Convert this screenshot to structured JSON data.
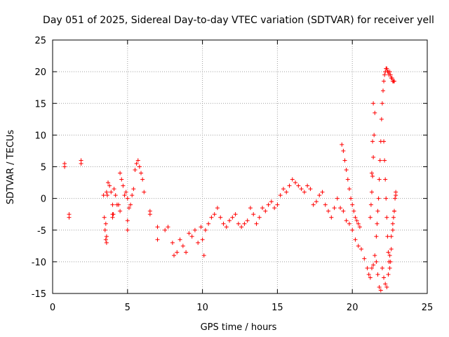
{
  "chart_data": {
    "type": "scatter",
    "title": "Day 051 of 2025, Sidereal Day-to-day VTEC variation (SDTVAR) for receiver yell",
    "xlabel": "GPS time / hours",
    "ylabel": "SDTVAR / TECUs",
    "xlim": [
      0,
      25
    ],
    "ylim": [
      -15,
      25
    ],
    "xticks": [
      0,
      5,
      10,
      15,
      20,
      25
    ],
    "yticks": [
      -15,
      -10,
      -5,
      0,
      5,
      10,
      15,
      20,
      25
    ],
    "xtick_labels": [
      "0",
      "5",
      "10",
      "15",
      "20",
      "25"
    ],
    "ytick_labels": [
      "-15",
      "-10",
      "-5",
      "0",
      "5",
      "10",
      "15",
      "20",
      "25"
    ],
    "grid": true,
    "marker": "plus",
    "color": "#ff0000",
    "series": [
      {
        "name": "SDTVAR",
        "x": [
          0.8,
          0.8,
          1.1,
          1.1,
          1.9,
          1.9,
          3.4,
          3.45,
          3.5,
          3.55,
          3.6,
          3.6,
          3.65,
          3.7,
          3.8,
          3.9,
          4.0,
          4.05,
          4.1,
          4.2,
          4.3,
          4.4,
          4.5,
          4.6,
          4.7,
          4.8,
          4.9,
          5.0,
          5.1,
          5.2,
          5.3,
          5.4,
          5.5,
          5.6,
          5.7,
          5.8,
          5.9,
          6.0,
          6.1,
          3.55,
          3.6,
          4.0,
          4.0,
          4.5,
          5.0,
          5.0,
          6.5,
          6.5,
          7.0,
          7.0,
          7.5,
          7.7,
          8.0,
          8.1,
          8.3,
          8.5,
          8.7,
          8.9,
          9.1,
          9.3,
          9.5,
          9.7,
          9.9,
          10.0,
          10.1,
          10.2,
          10.4,
          10.6,
          10.8,
          11.0,
          11.2,
          11.4,
          11.6,
          11.8,
          12.0,
          12.2,
          12.4,
          12.6,
          12.8,
          13.0,
          13.2,
          13.4,
          13.6,
          13.8,
          14.0,
          14.2,
          14.4,
          14.6,
          14.8,
          15.0,
          15.2,
          15.4,
          15.6,
          15.8,
          16.0,
          16.2,
          16.4,
          16.6,
          16.8,
          17.0,
          17.2,
          17.4,
          17.6,
          17.8,
          18.0,
          18.2,
          18.4,
          18.6,
          18.8,
          19.0,
          19.2,
          19.4,
          19.6,
          19.8,
          20.0,
          20.2,
          20.4,
          20.6,
          20.8,
          21.0,
          21.1,
          21.2,
          21.3,
          21.4,
          21.5,
          21.6,
          21.7,
          21.8,
          21.9,
          19.3,
          19.4,
          19.5,
          19.6,
          19.7,
          19.8,
          19.9,
          20.0,
          20.1,
          20.2,
          20.3,
          20.4,
          20.5,
          21.2,
          21.25,
          21.3,
          21.35,
          21.4,
          21.45,
          21.5,
          21.4,
          21.35,
          21.3,
          21.6,
          21.65,
          21.7,
          21.75,
          21.8,
          21.85,
          21.9,
          21.95,
          22.0,
          22.05,
          22.1,
          22.15,
          22.2,
          22.25,
          22.3,
          22.35,
          22.4,
          22.45,
          22.5,
          22.55,
          22.6,
          22.65,
          22.7,
          22.75,
          22.8,
          22.1,
          22.15,
          22.2,
          22.25,
          22.3,
          22.35,
          22.4,
          22.45,
          22.5,
          22.55,
          22.6,
          22.7,
          22.75,
          22.8,
          22.85,
          22.9,
          22.0,
          22.1,
          22.2,
          22.3,
          22.4,
          22.5,
          22.6,
          22.7,
          22.8,
          22.9
        ],
        "y": [
          5.5,
          5.0,
          -2.5,
          -3.0,
          6.0,
          5.5,
          0.5,
          -3.0,
          -5.0,
          -6.5,
          -7.0,
          1.0,
          0.5,
          2.5,
          2.0,
          1.0,
          -1.0,
          -2.5,
          1.5,
          0.5,
          -1.0,
          -1.0,
          4.0,
          3.0,
          2.0,
          0.5,
          1.0,
          0.0,
          -1.5,
          -1.0,
          0.5,
          1.5,
          4.5,
          5.5,
          6.0,
          5.0,
          4.0,
          3.0,
          1.0,
          -4.0,
          -6.0,
          -2.5,
          -3.0,
          -2.0,
          -3.5,
          -5.0,
          -2.5,
          -2.0,
          -4.5,
          -6.5,
          -5.0,
          -4.5,
          -7.0,
          -9.0,
          -8.5,
          -6.5,
          -7.5,
          -8.5,
          -5.5,
          -6.0,
          -5.0,
          -7.0,
          -4.5,
          -6.5,
          -9.0,
          -5.0,
          -4.0,
          -3.0,
          -2.5,
          -1.5,
          -3.0,
          -4.0,
          -4.5,
          -3.5,
          -3.0,
          -2.5,
          -4.0,
          -4.5,
          -4.0,
          -3.5,
          -1.5,
          -2.5,
          -4.0,
          -3.0,
          -1.5,
          -2.0,
          -1.0,
          -0.5,
          -1.5,
          -1.0,
          0.5,
          1.5,
          1.0,
          2.0,
          3.0,
          2.5,
          2.0,
          1.5,
          1.0,
          2.0,
          1.5,
          -1.0,
          -0.5,
          0.5,
          1.0,
          -1.0,
          -2.0,
          -3.0,
          -1.5,
          0.0,
          -1.5,
          -2.0,
          -3.5,
          -4.0,
          -5.0,
          -6.5,
          -7.5,
          -8.0,
          -9.5,
          -11.0,
          -12.0,
          -12.5,
          -11.0,
          -10.5,
          -9.0,
          -10.0,
          -12.0,
          -14.0,
          -14.5,
          8.5,
          7.5,
          6.0,
          4.5,
          3.0,
          1.5,
          0.0,
          -1.0,
          -2.0,
          -3.0,
          -3.5,
          -4.0,
          -4.5,
          -3.0,
          -1.0,
          1.0,
          3.5,
          6.5,
          10.0,
          13.5,
          15.0,
          9.0,
          4.0,
          -6.0,
          -4.0,
          -2.0,
          0.0,
          3.0,
          6.0,
          9.0,
          12.5,
          15.0,
          17.0,
          18.5,
          19.5,
          20.0,
          20.5,
          20.5,
          20.0,
          20.0,
          19.5,
          20.0,
          19.5,
          19.0,
          19.0,
          18.5,
          18.5,
          18.5,
          9.0,
          6.0,
          3.0,
          0.0,
          -3.0,
          -6.0,
          -8.5,
          -10.0,
          -11.0,
          -10.0,
          -8.0,
          -5.0,
          -3.0,
          -2.0,
          0.0,
          1.0,
          -11.0,
          -12.5,
          -13.5,
          -14.0,
          -12.0,
          -9.0,
          -6.0,
          -4.0,
          -2.0,
          0.5
        ]
      }
    ]
  }
}
